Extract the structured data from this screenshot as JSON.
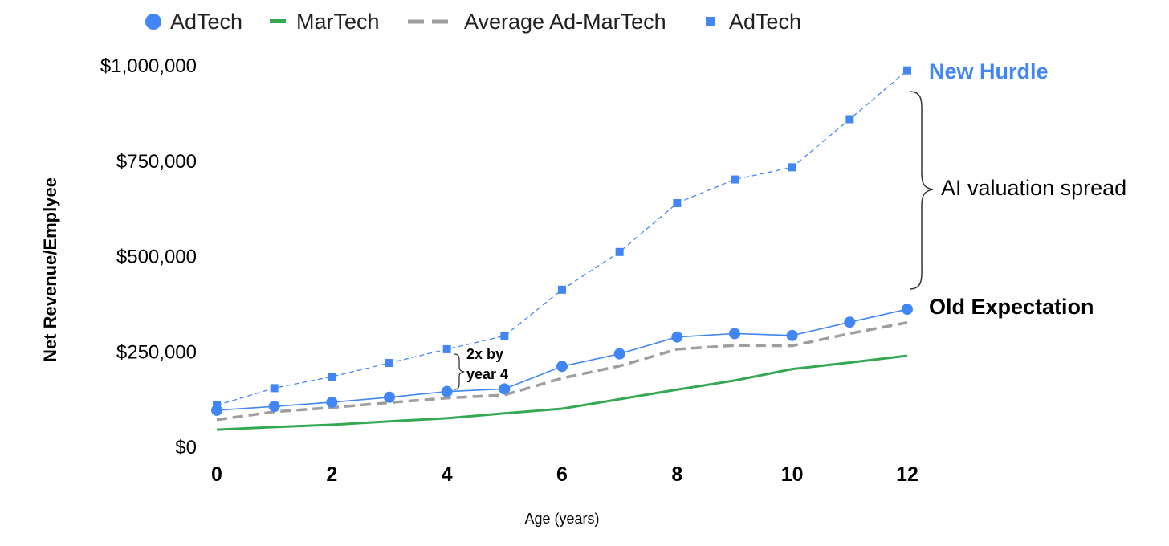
{
  "chart_data": {
    "type": "line",
    "title": "",
    "xlabel": "Age (years)",
    "ylabel": "Net Revenue/Emplyee",
    "xlim": [
      0,
      12
    ],
    "ylim": [
      0,
      1000000
    ],
    "x_ticks": [
      0,
      2,
      4,
      6,
      8,
      10,
      12
    ],
    "x_tick_labels": [
      "0",
      "2",
      "4",
      "6",
      "8",
      "10",
      "12"
    ],
    "y_ticks": [
      0,
      250000,
      500000,
      750000,
      1000000
    ],
    "y_tick_labels": [
      "$0",
      "$250,000",
      "$500,000",
      "$750,000",
      "$1,000,000"
    ],
    "grid": false,
    "legend_position": "top",
    "x": [
      0,
      1,
      2,
      3,
      4,
      5,
      6,
      7,
      8,
      9,
      10,
      11,
      12
    ],
    "series": [
      {
        "name": "AdTech",
        "style": "solid-circle",
        "color": "#4285f4",
        "values": [
          97000,
          107000,
          118000,
          131000,
          146000,
          153000,
          212000,
          245000,
          289000,
          298000,
          293000,
          328000,
          362000
        ]
      },
      {
        "name": "MarTech",
        "style": "solid-line",
        "color": "#34a853",
        "values": [
          46000,
          53000,
          59000,
          68000,
          76000,
          89000,
          101000,
          126000,
          151000,
          175000,
          205000,
          222000,
          240000
        ]
      },
      {
        "name": "Average Ad-MarTech",
        "style": "dashed-line",
        "color": "#9e9e9e",
        "values": [
          72000,
          93000,
          104000,
          117000,
          129000,
          137000,
          181000,
          213000,
          257000,
          267000,
          266000,
          298000,
          327000
        ]
      },
      {
        "name": "AdTech",
        "style": "dashed-square",
        "color": "#4285f4",
        "values": [
          110000,
          155000,
          185000,
          221000,
          257000,
          292000,
          413000,
          512000,
          640000,
          702000,
          734000,
          860000,
          988000
        ]
      }
    ],
    "annotations": {
      "new_hurdle": "New Hurdle",
      "old_expectation": "Old Expectation",
      "ai_spread": "AI valuation spread",
      "two_x_line1": "2x by",
      "two_x_line2": "year 4"
    }
  }
}
